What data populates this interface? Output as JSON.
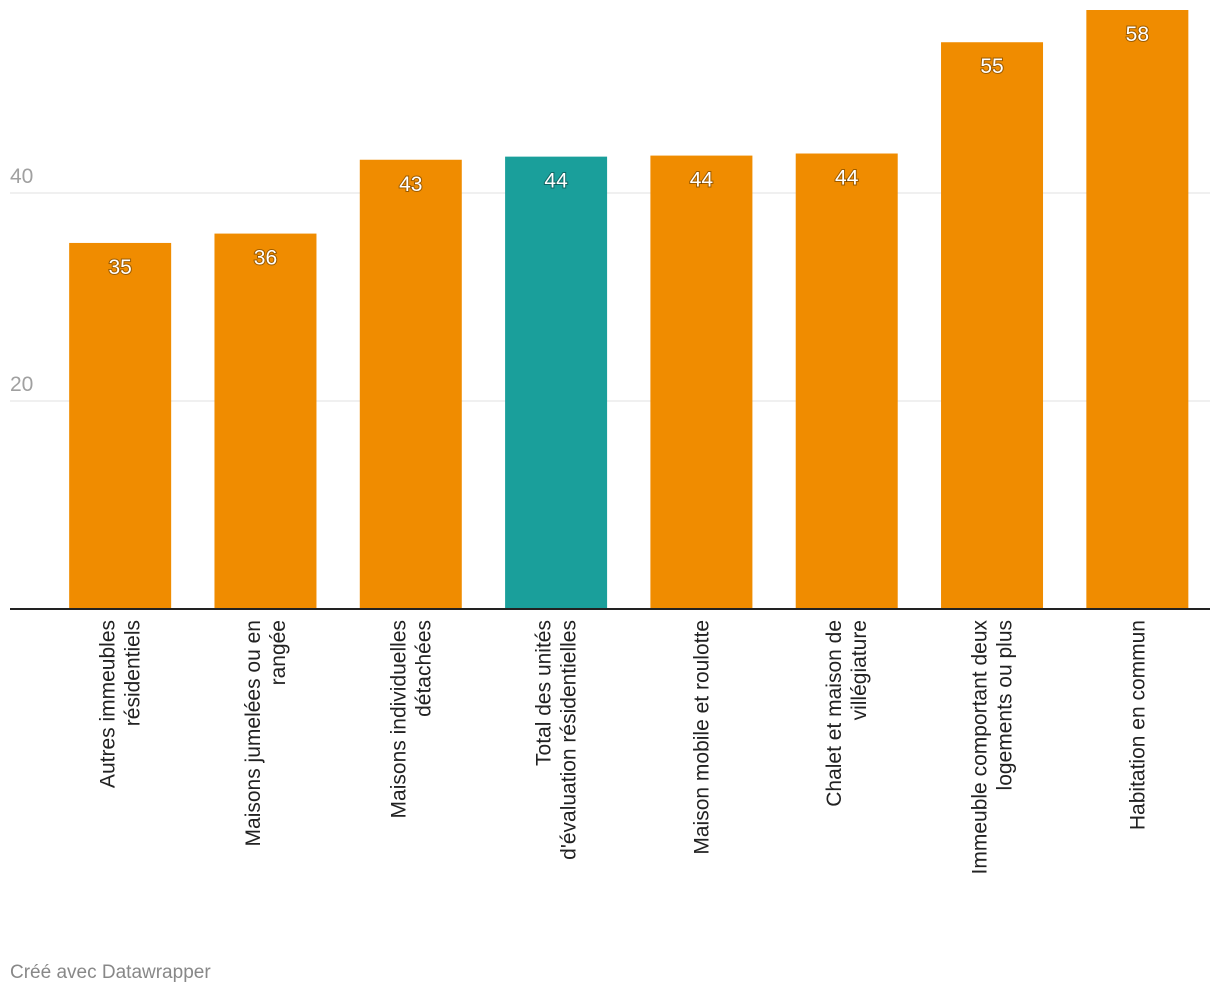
{
  "chart_data": {
    "type": "bar",
    "categories": [
      "Autres immeubles résidentiels",
      "Maisons jumelées ou en rangée",
      "Maisons individuelles détachées",
      "Total des unités d'évaluation résidentielles",
      "Maison mobile et roulotte",
      "Chalet et maison de villégiature",
      "Immeuble comportant deux logements ou plus",
      "Habitation en commun"
    ],
    "values": [
      35.2,
      36.1,
      43.2,
      43.5,
      43.6,
      43.8,
      54.5,
      57.6
    ],
    "value_labels": [
      "35",
      "36",
      "43",
      "44",
      "44",
      "44",
      "55",
      "58"
    ],
    "colors": [
      "#f08c00",
      "#f08c00",
      "#f08c00",
      "#1a9f9b",
      "#f08c00",
      "#f08c00",
      "#f08c00",
      "#f08c00"
    ],
    "ylim": [
      0,
      57.6
    ],
    "yticks": [
      20,
      40
    ],
    "grid": true,
    "footer": "Créé avec Datawrapper"
  }
}
